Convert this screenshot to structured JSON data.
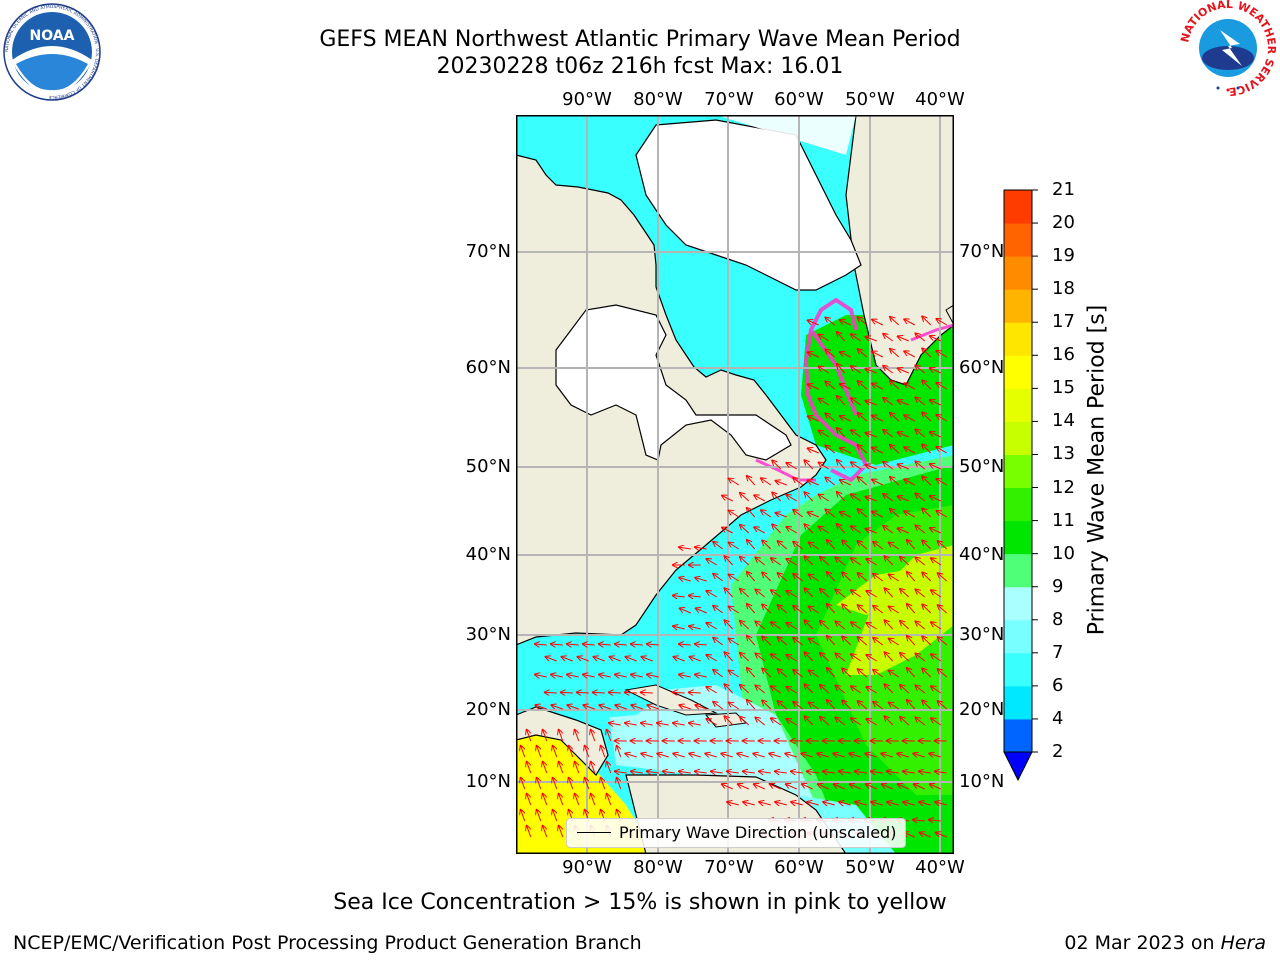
{
  "header": {
    "title_line1": "GEFS MEAN Northwest Atlantic Primary Wave Mean Period",
    "title_line2": "20230228 t06z 216h fcst   Max: 16.01"
  },
  "map": {
    "lon_labels": [
      "90°W",
      "80°W",
      "70°W",
      "60°W",
      "50°W",
      "40°W"
    ],
    "lat_labels": [
      "70°N",
      "60°N",
      "50°N",
      "40°N",
      "30°N",
      "20°N",
      "10°N"
    ],
    "land_color": "#efeddc",
    "ice_color": "#ffffff",
    "arrow_color": "#ff0000",
    "legend_label": "Primary Wave Direction (unscaled)"
  },
  "colorbar": {
    "label": "Primary Wave Mean Period [s]",
    "ticks": [
      "2",
      "4",
      "6",
      "7",
      "8",
      "9",
      "10",
      "11",
      "12",
      "13",
      "14",
      "15",
      "16",
      "17",
      "18",
      "19",
      "20",
      "21"
    ],
    "colors": [
      "#0064ff",
      "#00e8ff",
      "#3affff",
      "#78ffff",
      "#aaffff",
      "#50ff78",
      "#00e600",
      "#32f000",
      "#78ff00",
      "#c8ff00",
      "#e6ff00",
      "#ffff00",
      "#ffe600",
      "#ffb400",
      "#ff8c00",
      "#ff6400",
      "#ff3c00",
      "#ff0000"
    ],
    "extend_color": "#0000ff"
  },
  "logos": {
    "noaa_text": "NOAA",
    "noaa_ring_text": "NATIONAL OCEANIC AND ATMOSPHERIC ADMINISTRATION · U.S. DEPARTMENT OF COMMERCE",
    "nws_ring_text": "NATIONAL WEATHER SERVICE"
  },
  "footer": {
    "note": "Sea Ice Concentration > 15% is shown in pink to yellow",
    "left": "NCEP/EMC/Verification Post Processing Product Generation Branch",
    "right_date": "02 Mar 2023 on ",
    "right_host": "Hera"
  }
}
